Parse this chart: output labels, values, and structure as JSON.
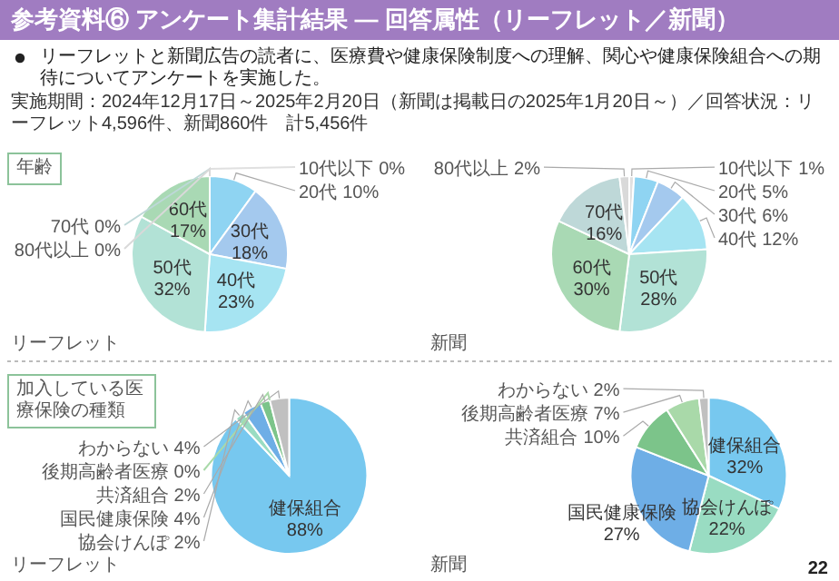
{
  "chart_data": [
    {
      "type": "pie",
      "title": "リーフレット",
      "categories": [
        "10代以下",
        "20代",
        "30代",
        "40代",
        "50代",
        "60代",
        "70代",
        "80代以上"
      ],
      "values": [
        0,
        10,
        18,
        23,
        32,
        17,
        0,
        0
      ],
      "value_labels": [
        "0%",
        "10%",
        "18%",
        "23%",
        "32%",
        "17%",
        "0%",
        "0%"
      ],
      "colors": [
        "#e0e0e0",
        "#8fd4f2",
        "#a4c9ee",
        "#a6e4f2",
        "#b2e2d6",
        "#a9d9b4",
        "#bed8d8",
        "#d9d9d9"
      ],
      "annotations": [
        "参考資料⑥ アンケート集計結果 — 回答属性（リーフレット／新聞）",
        "リーフレットと新聞広告の読者に、医療費や健康保険制度への理解、関心や健康保険組合への期待についてアンケートを実施した。",
        "実施期間：2024年12月17日～2025年2月20日（新聞は掲載日の2025年1月20日～）／回答状況：リーフレット4,596件、新聞860件　計5,456件",
        "年齢"
      ]
    },
    {
      "type": "pie",
      "title": "新聞",
      "categories": [
        "10代以下",
        "20代",
        "30代",
        "40代",
        "50代",
        "60代",
        "70代",
        "80代以上"
      ],
      "values": [
        1,
        5,
        6,
        12,
        28,
        30,
        16,
        2
      ],
      "value_labels": [
        "1%",
        "5%",
        "6%",
        "12%",
        "28%",
        "30%",
        "16%",
        "2%"
      ],
      "colors": [
        "#e0e0e0",
        "#8fd4f2",
        "#a4c9ee",
        "#a6e4f2",
        "#b2e2d6",
        "#a9d9b4",
        "#bed8d8",
        "#d9d9d9"
      ]
    },
    {
      "type": "pie",
      "title": "リーフレット",
      "categories": [
        "健保組合",
        "協会けんぽ",
        "国民健康保険",
        "共済組合",
        "後期高齢者医療",
        "わからない"
      ],
      "values": [
        88,
        2,
        4,
        2,
        0,
        4
      ],
      "value_labels": [
        "88%",
        "2%",
        "4%",
        "2%",
        "0%",
        "4%"
      ],
      "colors": [
        "#77c8ef",
        "#99dcc2",
        "#6eaee6",
        "#7cc48a",
        "#a9d9a9",
        "#c0c0c0"
      ],
      "annotations": [
        "加入している医療保険の種類"
      ]
    },
    {
      "type": "pie",
      "title": "新聞",
      "categories": [
        "健保組合",
        "協会けんぽ",
        "国民健康保険",
        "共済組合",
        "後期高齢者医療",
        "わからない"
      ],
      "values": [
        32,
        22,
        27,
        10,
        7,
        2
      ],
      "value_labels": [
        "32%",
        "22%",
        "27%",
        "10%",
        "7%",
        "2%"
      ],
      "colors": [
        "#77c8ef",
        "#99dcc2",
        "#6eaee6",
        "#7cc48a",
        "#a9d9a9",
        "#c0c0c0"
      ],
      "annotations": [
        "22"
      ]
    }
  ]
}
